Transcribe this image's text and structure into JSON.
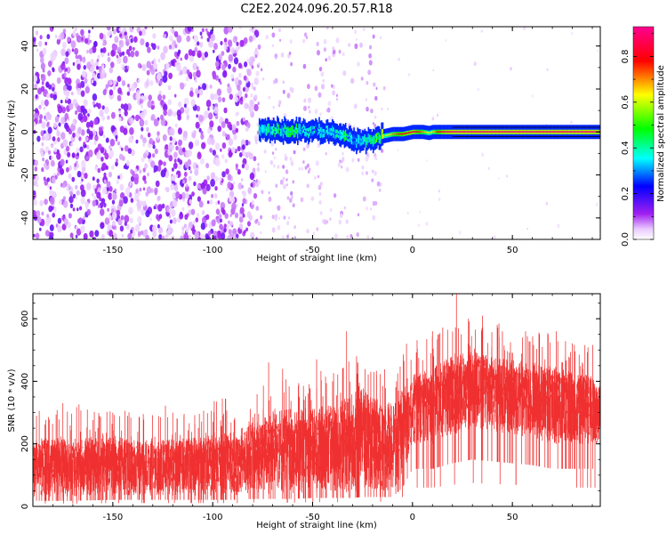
{
  "figure": {
    "title": "C2E2.2024.096.20.57.R18"
  },
  "colorbar": {
    "label": "Normalized spectral amplitude",
    "ticks": [
      "0.0",
      "0.2",
      "0.4",
      "0.6",
      "0.8"
    ],
    "tick_values": [
      0.0,
      0.2,
      0.4,
      0.6,
      0.8
    ],
    "range": [
      0,
      0.93
    ]
  },
  "chart_data": [
    {
      "type": "heatmap",
      "title": "",
      "xlabel": "Height of straight line (km)",
      "ylabel": "Frequency (Hz)",
      "xlim": [
        -190,
        94
      ],
      "ylim": [
        -50,
        49
      ],
      "xticks": [
        -150,
        -100,
        -50,
        0,
        50
      ],
      "yticks": [
        -40,
        -20,
        0,
        20,
        40
      ],
      "noise_region_x": [
        -190,
        -78
      ],
      "transition_region_x": [
        -78,
        -15
      ],
      "signal_trace": {
        "x": [
          -77,
          -70,
          -60,
          -50,
          -45,
          -40,
          -35,
          -30,
          -25,
          -20,
          -15,
          -10,
          -5,
          0,
          5,
          8,
          10,
          12,
          15,
          20,
          30,
          50,
          70,
          94
        ],
        "y": [
          1,
          1,
          0.5,
          0.5,
          0.5,
          0,
          -2,
          -4,
          -4,
          -3,
          -2,
          -1,
          -1,
          0,
          0,
          -0.5,
          0,
          0,
          0,
          0,
          0,
          0,
          0,
          0
        ],
        "amplitude": [
          0.35,
          0.35,
          0.4,
          0.3,
          0.3,
          0.35,
          0.4,
          0.3,
          0.35,
          0.4,
          0.55,
          0.7,
          0.8,
          0.85,
          0.7,
          0.6,
          0.65,
          0.75,
          0.85,
          0.9,
          0.9,
          0.9,
          0.9,
          0.9
        ]
      },
      "colormap": [
        "#ffffff",
        "#a020f0",
        "#0000ff",
        "#00ffff",
        "#00ff00",
        "#ffff00",
        "#ff0000",
        "#ff00a0"
      ]
    },
    {
      "type": "area",
      "title": "",
      "xlabel": "Height of straight line (km)",
      "ylabel": "SNR (10 * v/v)",
      "xlim": [
        -190,
        94
      ],
      "ylim": [
        0,
        680
      ],
      "xticks": [
        -150,
        -100,
        -50,
        0,
        50
      ],
      "yticks": [
        0,
        200,
        400,
        600
      ],
      "color": "#f03030",
      "series": [
        {
          "x": [
            -190,
            -170,
            -150,
            -130,
            -110,
            -90,
            -80,
            -70,
            -60,
            -50,
            -40,
            -30,
            -25,
            -20,
            -10,
            -5,
            0,
            10,
            20,
            30,
            40,
            50,
            60,
            70,
            80,
            94
          ],
          "low": [
            30,
            30,
            35,
            35,
            35,
            35,
            40,
            40,
            40,
            45,
            45,
            45,
            50,
            50,
            50,
            100,
            200,
            200,
            230,
            250,
            240,
            230,
            220,
            200,
            200,
            200
          ],
          "high": [
            210,
            220,
            220,
            210,
            220,
            240,
            270,
            300,
            320,
            320,
            330,
            360,
            380,
            350,
            320,
            380,
            420,
            450,
            480,
            500,
            480,
            470,
            460,
            450,
            430,
            420
          ],
          "peaks_x": [
            -175,
            -150,
            -120,
            -95,
            -72,
            -65,
            -48,
            -40,
            -33,
            -28,
            -18,
            -8,
            -3,
            10,
            22,
            28,
            35,
            45,
            55,
            65,
            72,
            85
          ],
          "peaks_y": [
            330,
            300,
            300,
            290,
            460,
            440,
            470,
            400,
            560,
            480,
            420,
            400,
            520,
            560,
            680,
            600,
            610,
            560,
            540,
            510,
            560,
            460
          ]
        }
      ]
    }
  ]
}
